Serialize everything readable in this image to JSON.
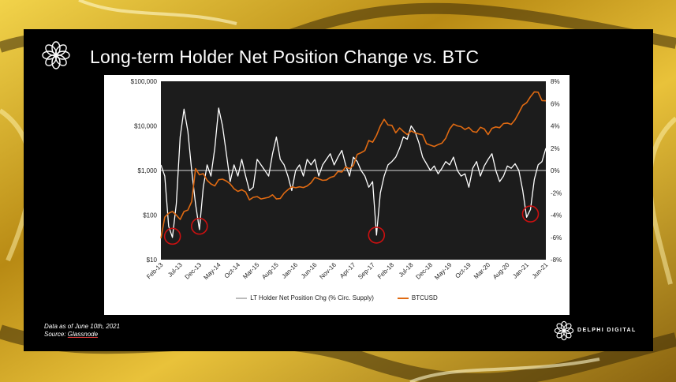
{
  "slide": {
    "title": "Long-term Holder Net Position Change vs. BTC",
    "footer_line1": "Data as of June 10th, 2021",
    "footer_source_prefix": "Source: ",
    "footer_source_link": "Glassnode",
    "brand": "DELPHI DIGITAL",
    "logo_icon": "delphi-flower-logo"
  },
  "colors": {
    "background_gold": "#c8a020",
    "slide_bg": "#000000",
    "chart_bg": "#1c1c1c",
    "lth_line": "#ffffff",
    "btc_line": "#e06a12",
    "highlight_circle": "#cc1010"
  },
  "chart_data": {
    "type": "line",
    "title": "",
    "x_tick_labels": [
      "Feb-13",
      "Jul-13",
      "Dec-13",
      "May-14",
      "Oct-14",
      "Mar-15",
      "Aug-15",
      "Jan-16",
      "Jun-16",
      "Nov-16",
      "Apr-17",
      "Sep-17",
      "Feb-18",
      "Jul-18",
      "Dec-18",
      "May-19",
      "Oct-19",
      "Mar-20",
      "Aug-20",
      "Jan-21",
      "Jun-21"
    ],
    "x_range": [
      "2013-02",
      "2021-06"
    ],
    "left_axis": {
      "scale": "log",
      "range": [
        10,
        100000
      ],
      "tick_labels": [
        "$100,000",
        "$10,000",
        "$1,000",
        "$100",
        "$10"
      ]
    },
    "right_axis": {
      "scale": "linear",
      "unit": "%",
      "range": [
        -8,
        8
      ],
      "tick_labels": [
        "8%",
        "6%",
        "4%",
        "2%",
        "0%",
        "-2%",
        "-4%",
        "-6%",
        "-8%"
      ]
    },
    "legend": "bottom",
    "grid": false,
    "series": [
      {
        "name": "LT Holder Net Position Chg (% Circ. Supply)",
        "axis": "right",
        "color": "#ffffff",
        "x": [
          "2013-02",
          "2013-03",
          "2013-04",
          "2013-05",
          "2013-06",
          "2013-07",
          "2013-08",
          "2013-09",
          "2013-10",
          "2013-11",
          "2013-12",
          "2014-01",
          "2014-02",
          "2014-03",
          "2014-04",
          "2014-05",
          "2014-06",
          "2014-07",
          "2014-08",
          "2014-09",
          "2014-10",
          "2014-11",
          "2014-12",
          "2015-01",
          "2015-02",
          "2015-03",
          "2015-04",
          "2015-05",
          "2015-06",
          "2015-07",
          "2015-08",
          "2015-09",
          "2015-10",
          "2015-11",
          "2015-12",
          "2016-01",
          "2016-02",
          "2016-03",
          "2016-04",
          "2016-05",
          "2016-06",
          "2016-07",
          "2016-08",
          "2016-09",
          "2016-10",
          "2016-11",
          "2016-12",
          "2017-01",
          "2017-02",
          "2017-03",
          "2017-04",
          "2017-05",
          "2017-06",
          "2017-07",
          "2017-08",
          "2017-09",
          "2017-10",
          "2017-11",
          "2017-12",
          "2018-01",
          "2018-02",
          "2018-03",
          "2018-04",
          "2018-05",
          "2018-06",
          "2018-07",
          "2018-08",
          "2018-09",
          "2018-10",
          "2018-11",
          "2018-12",
          "2019-01",
          "2019-02",
          "2019-03",
          "2019-04",
          "2019-05",
          "2019-06",
          "2019-07",
          "2019-08",
          "2019-09",
          "2019-10",
          "2019-11",
          "2019-12",
          "2020-01",
          "2020-02",
          "2020-03",
          "2020-04",
          "2020-05",
          "2020-06",
          "2020-07",
          "2020-08",
          "2020-09",
          "2020-10",
          "2020-11",
          "2020-12",
          "2021-01",
          "2021-02",
          "2021-03",
          "2021-04",
          "2021-05",
          "2021-06"
        ],
        "values": [
          0.5,
          -0.5,
          -5.0,
          -6.0,
          -3.0,
          3.0,
          5.5,
          3.5,
          0.0,
          -3.0,
          -5.3,
          -1.5,
          0.5,
          -0.5,
          2.0,
          5.6,
          4.0,
          1.5,
          -1.0,
          0.5,
          -0.5,
          1.0,
          -0.5,
          -1.8,
          -1.5,
          1.0,
          0.5,
          0.0,
          -0.5,
          1.5,
          3.0,
          1.0,
          0.5,
          -0.5,
          -1.8,
          0.0,
          0.5,
          -0.5,
          1.0,
          0.5,
          1.0,
          -0.5,
          0.5,
          1.0,
          1.5,
          0.5,
          1.2,
          1.8,
          0.5,
          -0.5,
          1.2,
          0.8,
          0.0,
          -0.5,
          -1.5,
          -1.0,
          -5.8,
          -2.0,
          -0.5,
          0.5,
          0.8,
          1.2,
          2.0,
          3.0,
          2.8,
          4.0,
          3.5,
          2.5,
          1.2,
          0.6,
          0.0,
          0.4,
          -0.3,
          0.2,
          0.8,
          0.5,
          1.2,
          0.0,
          -0.5,
          -0.3,
          -1.5,
          0.2,
          0.8,
          -0.5,
          0.4,
          1.0,
          1.5,
          0.0,
          -1.0,
          -0.5,
          0.4,
          0.2,
          0.6,
          0.0,
          -1.8,
          -4.2,
          -3.5,
          -0.8,
          0.5,
          0.8,
          2.0
        ]
      },
      {
        "name": "BTCUSD",
        "axis": "left",
        "color": "#e06a12",
        "x": [
          "2013-02",
          "2013-03",
          "2013-04",
          "2013-05",
          "2013-06",
          "2013-07",
          "2013-08",
          "2013-09",
          "2013-10",
          "2013-11",
          "2013-12",
          "2014-01",
          "2014-02",
          "2014-03",
          "2014-04",
          "2014-05",
          "2014-06",
          "2014-07",
          "2014-08",
          "2014-09",
          "2014-10",
          "2014-11",
          "2014-12",
          "2015-01",
          "2015-02",
          "2015-03",
          "2015-04",
          "2015-05",
          "2015-06",
          "2015-07",
          "2015-08",
          "2015-09",
          "2015-10",
          "2015-11",
          "2015-12",
          "2016-01",
          "2016-02",
          "2016-03",
          "2016-04",
          "2016-05",
          "2016-06",
          "2016-07",
          "2016-08",
          "2016-09",
          "2016-10",
          "2016-11",
          "2016-12",
          "2017-01",
          "2017-02",
          "2017-03",
          "2017-04",
          "2017-05",
          "2017-06",
          "2017-07",
          "2017-08",
          "2017-09",
          "2017-10",
          "2017-11",
          "2017-12",
          "2018-01",
          "2018-02",
          "2018-03",
          "2018-04",
          "2018-05",
          "2018-06",
          "2018-07",
          "2018-08",
          "2018-09",
          "2018-10",
          "2018-11",
          "2018-12",
          "2019-01",
          "2019-02",
          "2019-03",
          "2019-04",
          "2019-05",
          "2019-06",
          "2019-07",
          "2019-08",
          "2019-09",
          "2019-10",
          "2019-11",
          "2019-12",
          "2020-01",
          "2020-02",
          "2020-03",
          "2020-04",
          "2020-05",
          "2020-06",
          "2020-07",
          "2020-08",
          "2020-09",
          "2020-10",
          "2020-11",
          "2020-12",
          "2021-01",
          "2021-02",
          "2021-03",
          "2021-04",
          "2021-05",
          "2021-06"
        ],
        "values": [
          30,
          90,
          110,
          120,
          100,
          80,
          120,
          130,
          200,
          1100,
          800,
          850,
          600,
          500,
          450,
          620,
          640,
          580,
          500,
          390,
          340,
          370,
          330,
          220,
          250,
          260,
          230,
          240,
          250,
          285,
          230,
          235,
          310,
          370,
          430,
          410,
          430,
          415,
          450,
          530,
          700,
          650,
          600,
          610,
          700,
          740,
          950,
          920,
          1200,
          1100,
          1300,
          2300,
          2500,
          2800,
          4700,
          4300,
          6100,
          10000,
          14000,
          10500,
          10300,
          7000,
          9000,
          7500,
          6400,
          7700,
          7000,
          6600,
          6300,
          4000,
          3700,
          3450,
          3800,
          4100,
          5300,
          8500,
          11000,
          10000,
          9600,
          8300,
          9200,
          7500,
          7200,
          9300,
          8600,
          6400,
          8800,
          9500,
          9100,
          11300,
          11600,
          10800,
          13800,
          19700,
          29000,
          33000,
          45000,
          58000,
          57000,
          37000,
          36500
        ]
      }
    ],
    "annotations": [
      {
        "type": "circle",
        "x": "2013-05",
        "axis": "right",
        "y": -5.9
      },
      {
        "type": "circle",
        "x": "2013-12",
        "axis": "right",
        "y": -5.0
      },
      {
        "type": "circle",
        "x": "2017-10",
        "axis": "right",
        "y": -5.8
      },
      {
        "type": "circle",
        "x": "2021-02",
        "axis": "right",
        "y": -3.9
      }
    ]
  }
}
